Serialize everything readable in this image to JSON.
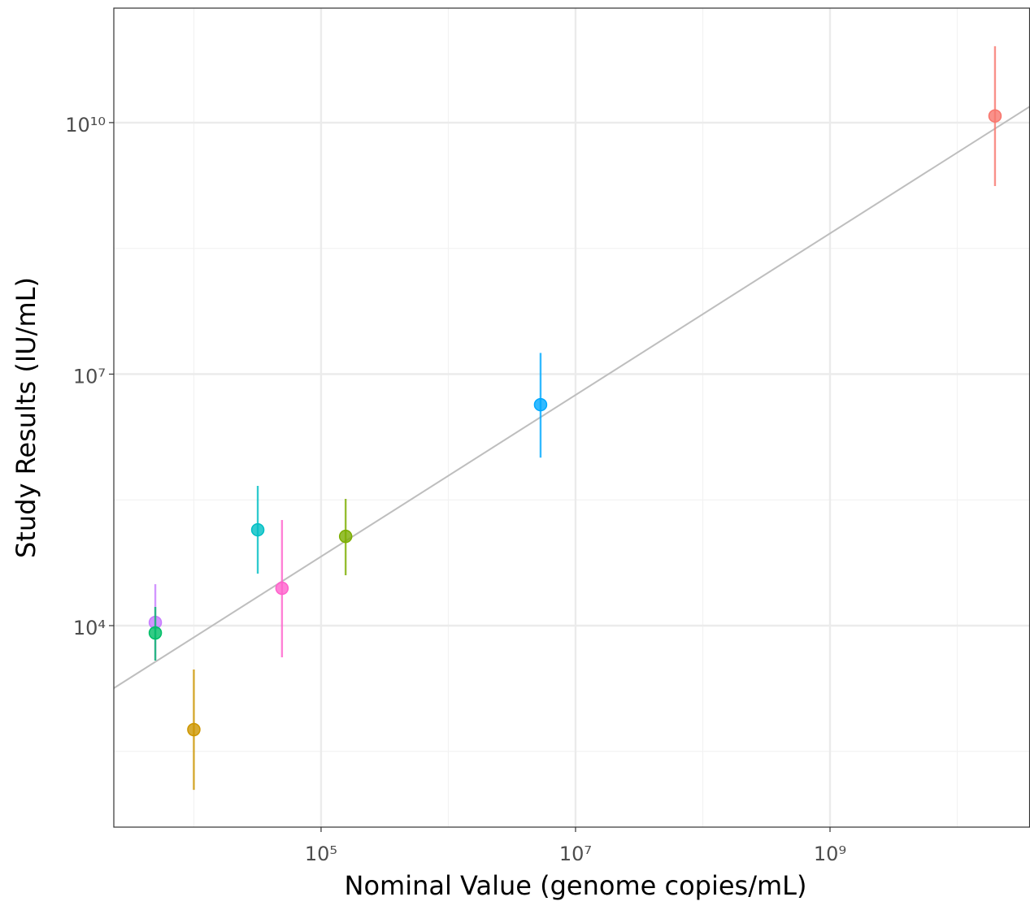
{
  "chart_data": {
    "type": "scatter",
    "x_label": "Nominal Value (genome copies/mL)",
    "y_label": "Study Results (IU/mL)",
    "xscale": "log",
    "yscale": "log",
    "grid": true,
    "xlim": [
      2350,
      37300000000
    ],
    "ylim": [
      39.5,
      232000000000
    ],
    "xticks": [
      {
        "value": 100000,
        "label": "10⁵"
      },
      {
        "value": 10000000,
        "label": "10⁷"
      },
      {
        "value": 1000000000,
        "label": "10⁹"
      }
    ],
    "yticks": [
      {
        "value": 10000,
        "label": "10⁴"
      },
      {
        "value": 10000000,
        "label": "10⁷"
      },
      {
        "value": 10000000000,
        "label": "10¹⁰"
      }
    ],
    "x_minor_grid": [
      10000,
      1000000,
      100000000,
      10000000000
    ],
    "y_minor_grid": [
      316,
      316000,
      316000000
    ],
    "x": [
      4980,
      4980,
      10000,
      31800,
      49300,
      156000,
      5310000,
      19800000000
    ],
    "y": [
      10900,
      8180,
      575,
      139000,
      27900,
      116000,
      4320000,
      12000000000
    ],
    "ymin": [
      3830,
      3830,
      110,
      41700,
      4190,
      39900,
      1010000,
      1750000000
    ],
    "ymax": [
      31200,
      16700,
      3000,
      464000,
      182000,
      325000,
      17900000,
      81500000000
    ],
    "colors": [
      "#C77CFF",
      "#00BE67",
      "#CD9600",
      "#00BFC4",
      "#FF61CC",
      "#7CAE00",
      "#00A9FF",
      "#F8766D"
    ],
    "reference_line": {
      "color": "#bebebe",
      "x": [
        2350,
        37300000000
      ],
      "y": [
        1795,
        15600000000
      ]
    }
  }
}
